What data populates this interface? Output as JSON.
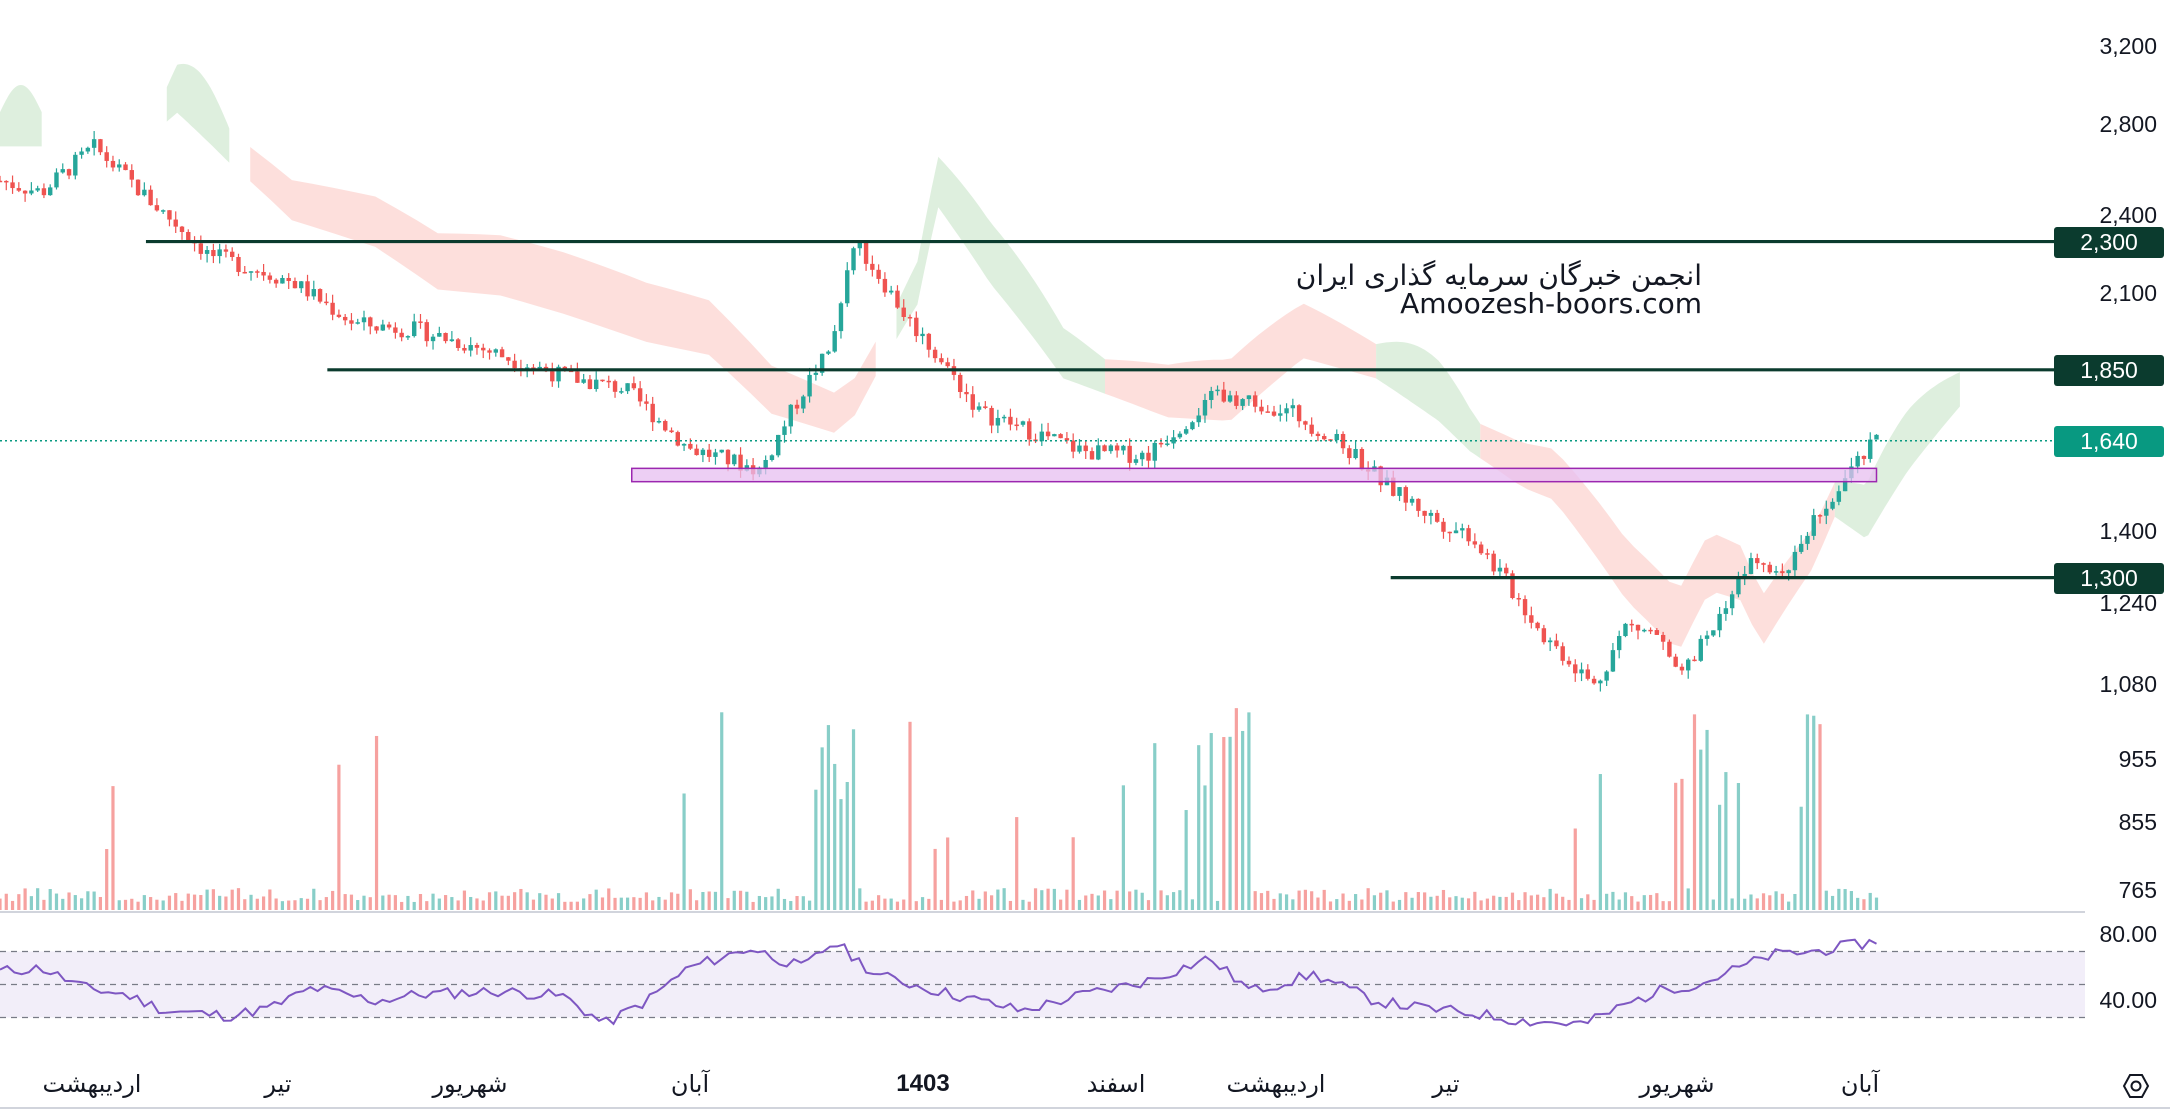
{
  "watermark": {
    "line1": "انجمن خبرگان سرمایه گذاری ایران",
    "line2": "Amoozesh-boors.com"
  },
  "colors": {
    "up": "#26a69a",
    "down": "#ef5350",
    "level_line": "#0b3b2e",
    "current_price": "#089981",
    "zone_fill": "#e7bff0",
    "zone_stroke": "#9c27b0",
    "rsi": "#7e57c2",
    "cloud_up": "#d6ebd6",
    "cloud_down": "#fcd7d3"
  },
  "icons": {
    "settings": "settings-hexagon-icon"
  },
  "chart_data": [
    {
      "type": "candlestick",
      "price_axis": {
        "scale": "log",
        "ticks": [
          "3,200",
          "2,800",
          "2,400",
          "2,100",
          "1,400",
          "1,240",
          "1,080",
          "955",
          "855",
          "765"
        ]
      },
      "time_axis": {
        "ticks": [
          {
            "label": "اردیبهشت",
            "bold": false
          },
          {
            "label": "تیر",
            "bold": false
          },
          {
            "label": "شهریور",
            "bold": false
          },
          {
            "label": "آبان",
            "bold": false
          },
          {
            "label": "1403",
            "bold": true
          },
          {
            "label": "اسفند",
            "bold": false
          },
          {
            "label": "اردیبهشت",
            "bold": false
          },
          {
            "label": "تیر",
            "bold": false
          },
          {
            "label": "شهریور",
            "bold": false
          },
          {
            "label": "آبان",
            "bold": false
          }
        ]
      },
      "horizontal_levels": [
        {
          "value": 2300,
          "label": "2,300",
          "from": "اردیبهشت"
        },
        {
          "value": 1850,
          "label": "1,850",
          "from": "تیر"
        },
        {
          "value": 1300,
          "label": "1,300",
          "from": "تیر"
        }
      ],
      "current_price": {
        "value": 1640,
        "label": "1,640"
      },
      "support_zone": {
        "low": 1530,
        "high": 1565
      },
      "price_path": [
        [
          0,
          2550
        ],
        [
          0.02,
          2500
        ],
        [
          0.045,
          2700
        ],
        [
          0.07,
          2480
        ],
        [
          0.1,
          2250
        ],
        [
          0.14,
          2150
        ],
        [
          0.17,
          2000
        ],
        [
          0.2,
          1980
        ],
        [
          0.23,
          1920
        ],
        [
          0.27,
          1830
        ],
        [
          0.3,
          1790
        ],
        [
          0.33,
          1620
        ],
        [
          0.365,
          1560
        ],
        [
          0.4,
          1950
        ],
        [
          0.41,
          2300
        ],
        [
          0.435,
          2020
        ],
        [
          0.47,
          1720
        ],
        [
          0.52,
          1610
        ],
        [
          0.55,
          1600
        ],
        [
          0.585,
          1780
        ],
        [
          0.62,
          1720
        ],
        [
          0.65,
          1600
        ],
        [
          0.665,
          1520
        ],
        [
          0.69,
          1430
        ],
        [
          0.705,
          1400
        ],
        [
          0.74,
          1180
        ],
        [
          0.765,
          1080
        ],
        [
          0.78,
          1200
        ],
        [
          0.795,
          1180
        ],
        [
          0.805,
          1090
        ],
        [
          0.83,
          1250
        ],
        [
          0.84,
          1360
        ],
        [
          0.855,
          1310
        ],
        [
          0.875,
          1470
        ],
        [
          0.9,
          1640
        ]
      ],
      "volume_bars": "present",
      "ichimoku_cloud": "present"
    },
    {
      "type": "line",
      "name": "RSI",
      "y_ticks": [
        "80.00",
        "40.00"
      ],
      "bands": [
        70,
        50,
        30
      ],
      "path": [
        [
          0,
          58
        ],
        [
          0.02,
          60
        ],
        [
          0.04,
          48
        ],
        [
          0.06,
          44
        ],
        [
          0.08,
          34
        ],
        [
          0.11,
          31
        ],
        [
          0.13,
          36
        ],
        [
          0.15,
          48
        ],
        [
          0.18,
          40
        ],
        [
          0.2,
          44
        ],
        [
          0.24,
          46
        ],
        [
          0.27,
          43
        ],
        [
          0.29,
          26
        ],
        [
          0.31,
          40
        ],
        [
          0.33,
          60
        ],
        [
          0.36,
          72
        ],
        [
          0.385,
          60
        ],
        [
          0.4,
          76
        ],
        [
          0.42,
          56
        ],
        [
          0.45,
          46
        ],
        [
          0.49,
          34
        ],
        [
          0.52,
          44
        ],
        [
          0.55,
          52
        ],
        [
          0.58,
          66
        ],
        [
          0.6,
          46
        ],
        [
          0.63,
          56
        ],
        [
          0.66,
          40
        ],
        [
          0.68,
          36
        ],
        [
          0.71,
          32
        ],
        [
          0.73,
          28
        ],
        [
          0.76,
          26
        ],
        [
          0.78,
          38
        ],
        [
          0.8,
          48
        ],
        [
          0.815,
          50
        ],
        [
          0.83,
          58
        ],
        [
          0.85,
          68
        ],
        [
          0.87,
          70
        ],
        [
          0.89,
          74
        ],
        [
          0.9,
          76
        ]
      ]
    }
  ]
}
